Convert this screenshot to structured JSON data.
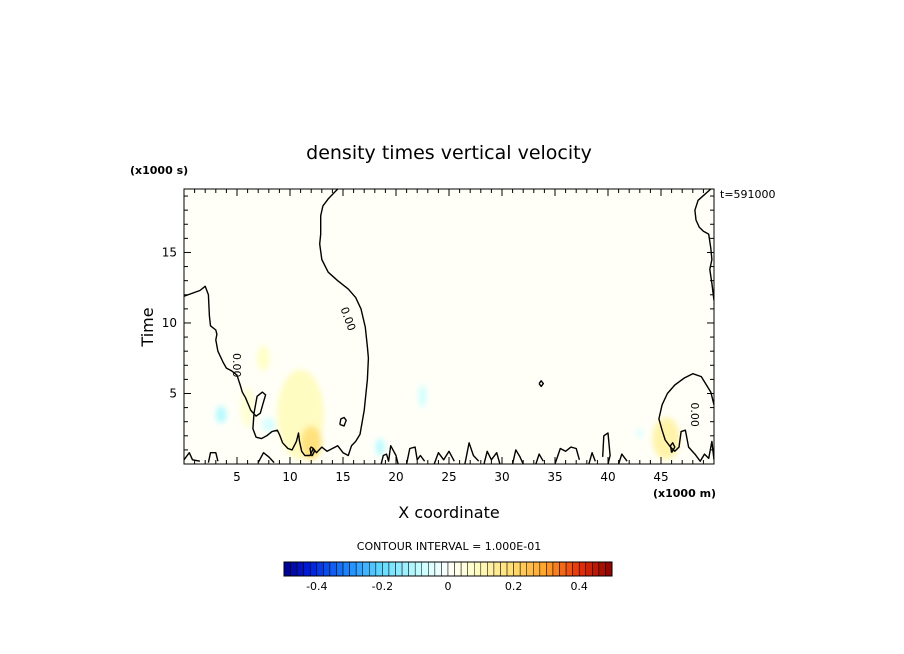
{
  "chart_data": {
    "type": "heatmap",
    "title": "density times vertical velocity",
    "xlabel": "X coordinate",
    "ylabel": "Time",
    "x_unit": "(x1000 m)",
    "y_unit": "(x1000 s)",
    "time_label": "t=591000",
    "xlim": [
      0,
      50
    ],
    "ylim": [
      0,
      19.5
    ],
    "x_ticks": [
      5,
      10,
      15,
      20,
      25,
      30,
      35,
      40,
      45
    ],
    "y_ticks": [
      5,
      10,
      15
    ],
    "contour_interval_label": "CONTOUR INTERVAL = 1.000E-01",
    "contour_label": "0.00",
    "colorbar": {
      "range": [
        -0.5,
        0.5
      ],
      "ticks": [
        -0.4,
        -0.2,
        0,
        0.2,
        0.4
      ],
      "tick_labels": [
        "-0.4",
        "-0.2",
        "0",
        "0.2",
        "0.4"
      ]
    },
    "background_value": 0.01,
    "blobs": [
      {
        "x": 11,
        "y": 3.5,
        "rx": 2.2,
        "ry": 3.2,
        "value": 0.09
      },
      {
        "x": 12,
        "y": 1.5,
        "rx": 1.0,
        "ry": 1.2,
        "value": 0.18
      },
      {
        "x": 7.5,
        "y": 7.5,
        "rx": 0.6,
        "ry": 0.9,
        "value": 0.08
      },
      {
        "x": 6,
        "y": 4,
        "rx": 0.7,
        "ry": 1.4,
        "value": 0.06
      },
      {
        "x": 45.5,
        "y": 1.8,
        "rx": 1.3,
        "ry": 1.5,
        "value": 0.12
      },
      {
        "x": 3.5,
        "y": 3.5,
        "rx": 0.5,
        "ry": 0.6,
        "value": -0.1
      },
      {
        "x": 22.5,
        "y": 4.8,
        "rx": 0.3,
        "ry": 0.8,
        "value": -0.08
      },
      {
        "x": 18.5,
        "y": 1.2,
        "rx": 0.4,
        "ry": 0.6,
        "value": -0.1
      },
      {
        "x": 8,
        "y": 2.8,
        "rx": 0.6,
        "ry": 0.5,
        "value": -0.06
      },
      {
        "x": 43,
        "y": 2.2,
        "rx": 0.3,
        "ry": 0.3,
        "value": -0.06
      }
    ],
    "contours": [
      [
        [
          0,
          11.9
        ],
        [
          1.5,
          12.3
        ],
        [
          2,
          12.6
        ],
        [
          2.3,
          12
        ],
        [
          2.4,
          10.5
        ],
        [
          2.5,
          9.8
        ],
        [
          3,
          9.5
        ],
        [
          3.1,
          9.2
        ],
        [
          3,
          8.8
        ],
        [
          3.2,
          8
        ],
        [
          3.7,
          7.2
        ],
        [
          4,
          6.8
        ],
        [
          4.5,
          6.6
        ],
        [
          5,
          6.3
        ],
        [
          5.3,
          5.6
        ],
        [
          5.5,
          5.1
        ],
        [
          5.8,
          4.7
        ],
        [
          6.3,
          3.8
        ],
        [
          6.8,
          3.4
        ],
        [
          7.2,
          3.6
        ],
        [
          7.5,
          4.4
        ],
        [
          7.7,
          4.9
        ],
        [
          7.4,
          5.1
        ],
        [
          6.9,
          4.8
        ],
        [
          6.6,
          3.6
        ],
        [
          6.5,
          2.5
        ],
        [
          6.8,
          1.9
        ],
        [
          7.3,
          1.8
        ],
        [
          7.8,
          2
        ],
        [
          8.3,
          2.3
        ],
        [
          8.8,
          2.4
        ],
        [
          9,
          2.1
        ],
        [
          9.3,
          1.5
        ],
        [
          9.8,
          1.1
        ],
        [
          10.2,
          1
        ],
        [
          10.6,
          1.6
        ],
        [
          10.8,
          2.2
        ],
        [
          10.9,
          1.6
        ],
        [
          11.1,
          0.9
        ],
        [
          11.4,
          0.6
        ],
        [
          11.9,
          0.6
        ],
        [
          12.2,
          1.1
        ],
        [
          12.5,
          0.8
        ],
        [
          13,
          1.2
        ],
        [
          13.5,
          0.9
        ],
        [
          14,
          1.1
        ],
        [
          14.5,
          1.3
        ],
        [
          15,
          0.8
        ],
        [
          15.5,
          0.6
        ],
        [
          15.8,
          1.3
        ],
        [
          16.2,
          1.6
        ],
        [
          16.6,
          2.1
        ],
        [
          17,
          3.8
        ],
        [
          17.3,
          6
        ],
        [
          17.4,
          7.5
        ],
        [
          17.3,
          8.3
        ],
        [
          17.1,
          9.7
        ],
        [
          16.7,
          11
        ],
        [
          16.2,
          11.8
        ],
        [
          15.5,
          12.4
        ],
        [
          14.5,
          13
        ],
        [
          13.6,
          13.6
        ],
        [
          13,
          14.5
        ],
        [
          12.8,
          15.6
        ],
        [
          12.9,
          16.3
        ],
        [
          12.9,
          17.6
        ],
        [
          13.1,
          18.3
        ],
        [
          13.6,
          18.8
        ],
        [
          14.5,
          19.5
        ]
      ],
      [
        [
          12,
          0.6
        ],
        [
          11.9,
          1.1
        ],
        [
          12,
          1.2
        ],
        [
          12.2,
          1.1
        ],
        [
          12.3,
          0.9
        ],
        [
          12.1,
          0.6
        ],
        [
          12,
          0.6
        ]
      ],
      [
        [
          14.7,
          2.8
        ],
        [
          14.8,
          3.2
        ],
        [
          15.1,
          3.3
        ],
        [
          15.3,
          3.1
        ],
        [
          15.1,
          2.7
        ],
        [
          14.7,
          2.8
        ]
      ],
      [
        [
          33.5,
          5.7
        ],
        [
          33.7,
          5.9
        ],
        [
          33.9,
          5.7
        ],
        [
          33.7,
          5.5
        ],
        [
          33.5,
          5.7
        ]
      ],
      [
        [
          0,
          0.3
        ],
        [
          0.5,
          0.8
        ],
        [
          0.8,
          0.3
        ],
        [
          1.5,
          0.2
        ]
      ],
      [
        [
          2.3,
          0.1
        ],
        [
          2.5,
          0.8
        ],
        [
          3,
          0.8
        ],
        [
          3.2,
          0.2
        ]
      ],
      [
        [
          7,
          0.1
        ],
        [
          7.5,
          0.8
        ],
        [
          8,
          0.5
        ],
        [
          8.5,
          0.1
        ]
      ],
      [
        [
          18.6,
          0
        ],
        [
          18.8,
          0.6
        ],
        [
          19.1,
          0.7
        ],
        [
          19.3,
          0.2
        ],
        [
          19.5,
          1.3
        ],
        [
          20,
          0.6
        ],
        [
          20.2,
          0
        ]
      ],
      [
        [
          21,
          0
        ],
        [
          21.3,
          1.1
        ],
        [
          21.8,
          1.2
        ],
        [
          22,
          0.3
        ],
        [
          22.3,
          0.6
        ],
        [
          22.7,
          0.2
        ]
      ],
      [
        [
          23.6,
          0
        ],
        [
          24,
          0.8
        ],
        [
          24.5,
          0.3
        ],
        [
          25,
          0.9
        ],
        [
          25.5,
          0.2
        ]
      ],
      [
        [
          26.5,
          0
        ],
        [
          26.9,
          1.5
        ],
        [
          27.3,
          0.6
        ],
        [
          27.8,
          0.2
        ]
      ],
      [
        [
          28.3,
          0
        ],
        [
          28.6,
          0.9
        ],
        [
          29,
          0.3
        ],
        [
          29.5,
          0.8
        ],
        [
          29.8,
          0
        ]
      ],
      [
        [
          31,
          0
        ],
        [
          31.3,
          1
        ],
        [
          31.7,
          0.5
        ],
        [
          32,
          0
        ]
      ],
      [
        [
          33.2,
          0
        ],
        [
          33.5,
          0.7
        ],
        [
          33.9,
          0.2
        ]
      ],
      [
        [
          35,
          0
        ],
        [
          35.5,
          1.1
        ],
        [
          36,
          0.9
        ],
        [
          36.5,
          1.2
        ],
        [
          37,
          1.1
        ],
        [
          37.3,
          0.3
        ]
      ],
      [
        [
          38.2,
          0
        ],
        [
          38.5,
          0.8
        ],
        [
          38.8,
          0.2
        ]
      ],
      [
        [
          39.5,
          0.5
        ],
        [
          39.6,
          2
        ],
        [
          40,
          2.2
        ],
        [
          40.2,
          0.6
        ],
        [
          40,
          0
        ]
      ],
      [
        [
          41,
          0
        ],
        [
          41.3,
          0.7
        ],
        [
          41.8,
          0.2
        ]
      ],
      [
        [
          49.7,
          19.5
        ],
        [
          48.5,
          18.7
        ],
        [
          48.2,
          18
        ],
        [
          48.3,
          17.3
        ],
        [
          48.6,
          16.8
        ],
        [
          49,
          16.5
        ],
        [
          49.5,
          16.3
        ],
        [
          49.7,
          15.3
        ],
        [
          49.8,
          14.5
        ],
        [
          49.6,
          13.8
        ],
        [
          49.8,
          12.8
        ],
        [
          50,
          11.6
        ]
      ],
      [
        [
          50,
          4.2
        ],
        [
          49.7,
          5.1
        ],
        [
          48.8,
          6.2
        ],
        [
          48,
          6.4
        ],
        [
          47.2,
          6.1
        ],
        [
          46.3,
          5.6
        ],
        [
          45.6,
          5
        ],
        [
          45.1,
          4.2
        ],
        [
          44.8,
          3.2
        ],
        [
          45.1,
          2.4
        ],
        [
          45.4,
          1.7
        ],
        [
          45.9,
          1.2
        ],
        [
          46.3,
          0.9
        ],
        [
          46.7,
          1.2
        ],
        [
          46.9,
          2.3
        ],
        [
          47.3,
          2.4
        ],
        [
          47.6,
          1.2
        ],
        [
          48.2,
          0.7
        ],
        [
          48.7,
          0.2
        ],
        [
          49.1,
          0.7
        ],
        [
          49.5,
          0.4
        ],
        [
          49.8,
          1.6
        ],
        [
          50,
          0.3
        ]
      ],
      [
        [
          46,
          0.8
        ],
        [
          45.9,
          1.3
        ],
        [
          46.1,
          1.5
        ],
        [
          46.3,
          1.2
        ],
        [
          46,
          0.8
        ]
      ]
    ],
    "contour_labels": [
      {
        "x": 5,
        "y": 7,
        "angle": 90
      },
      {
        "x": 15.5,
        "y": 10.3,
        "angle": 70
      },
      {
        "x": 48.2,
        "y": 3.5,
        "angle": 90
      }
    ]
  }
}
